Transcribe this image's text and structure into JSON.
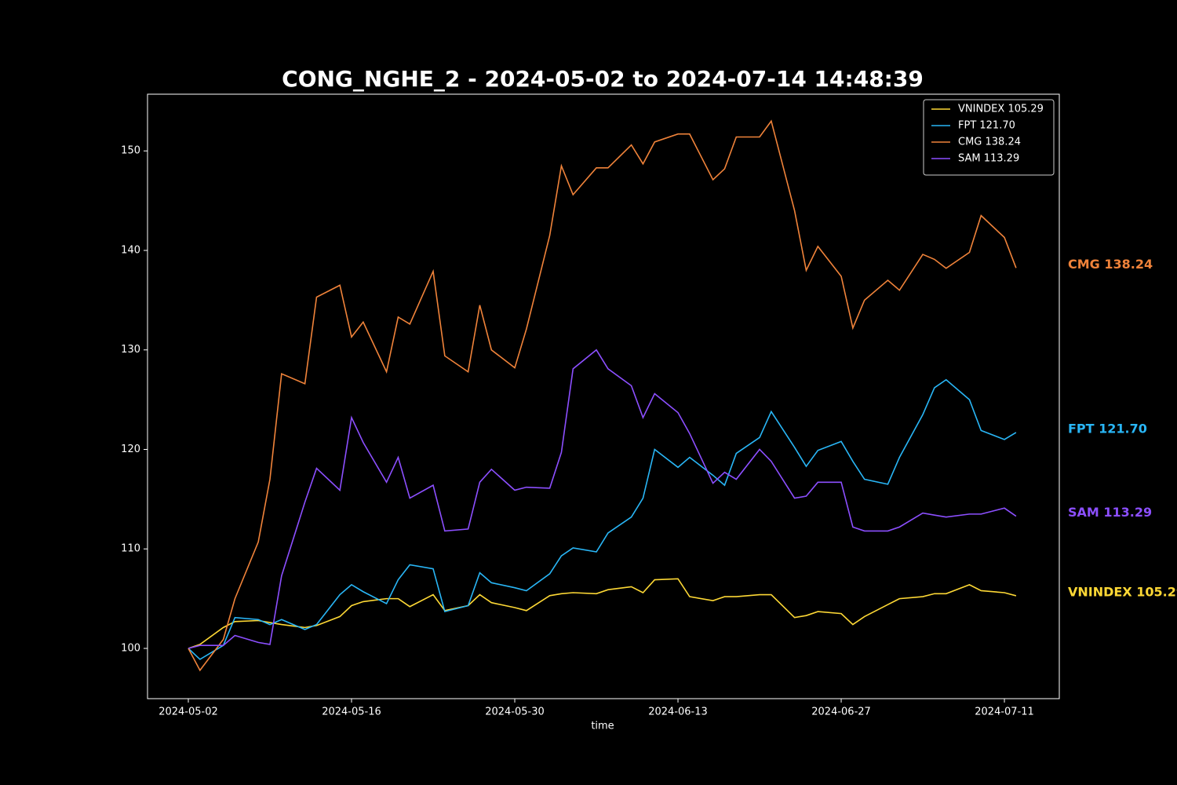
{
  "chart_data": {
    "type": "line",
    "title": "CONG_NGHE_2 - 2024-05-02 to 2024-07-14 14:48:39",
    "x_label": "time",
    "x": [
      "2024-05-02",
      "2024-05-03",
      "2024-05-05",
      "2024-05-06",
      "2024-05-08",
      "2024-05-09",
      "2024-05-10",
      "2024-05-12",
      "2024-05-13",
      "2024-05-15",
      "2024-05-16",
      "2024-05-17",
      "2024-05-19",
      "2024-05-20",
      "2024-05-21",
      "2024-05-23",
      "2024-05-24",
      "2024-05-26",
      "2024-05-27",
      "2024-05-28",
      "2024-05-30",
      "2024-05-31",
      "2024-06-02",
      "2024-06-03",
      "2024-06-04",
      "2024-06-06",
      "2024-06-07",
      "2024-06-09",
      "2024-06-10",
      "2024-06-11",
      "2024-06-13",
      "2024-06-14",
      "2024-06-16",
      "2024-06-17",
      "2024-06-18",
      "2024-06-20",
      "2024-06-21",
      "2024-06-23",
      "2024-06-24",
      "2024-06-25",
      "2024-06-27",
      "2024-06-28",
      "2024-06-29",
      "2024-07-01",
      "2024-07-02",
      "2024-07-04",
      "2024-07-05",
      "2024-07-06",
      "2024-07-08",
      "2024-07-09",
      "2024-07-11",
      "2024-07-12"
    ],
    "series": [
      {
        "name": "VNINDEX 105.29",
        "color": "#fdd835",
        "values": [
          100,
          100.4,
          102.1,
          102.7,
          102.8,
          102.6,
          102.4,
          102.1,
          102.3,
          103.2,
          104.3,
          104.7,
          105.0,
          105.0,
          104.2,
          105.4,
          103.8,
          104.3,
          105.4,
          104.6,
          104.1,
          103.8,
          105.3,
          105.5,
          105.6,
          105.5,
          105.9,
          106.2,
          105.6,
          106.9,
          107.0,
          105.2,
          104.8,
          105.2,
          105.2,
          105.4,
          105.4,
          103.1,
          103.3,
          103.7,
          103.5,
          102.4,
          103.2,
          104.4,
          105.0,
          105.2,
          105.5,
          105.5,
          106.4,
          105.8,
          105.6,
          105.29
        ]
      },
      {
        "name": "FPT 121.70",
        "color": "#29b6f6",
        "values": [
          100,
          98.9,
          100.3,
          103.1,
          102.9,
          102.4,
          102.9,
          101.9,
          102.4,
          105.4,
          106.4,
          105.7,
          104.5,
          106.9,
          108.4,
          108.0,
          103.7,
          104.3,
          107.6,
          106.6,
          106.1,
          105.8,
          107.5,
          109.3,
          110.1,
          109.7,
          111.6,
          113.2,
          115.1,
          120.0,
          118.2,
          119.2,
          117.4,
          116.4,
          119.6,
          121.2,
          123.8,
          120.2,
          118.3,
          119.9,
          120.8,
          118.8,
          117.0,
          116.5,
          119.2,
          123.5,
          126.2,
          127.0,
          125.0,
          121.9,
          121.0,
          121.7
        ]
      },
      {
        "name": "CMG 138.24",
        "color": "#f0833a",
        "values": [
          100,
          97.8,
          100.9,
          105.0,
          110.7,
          117.0,
          127.6,
          126.6,
          135.3,
          136.5,
          131.3,
          132.8,
          127.8,
          133.3,
          132.6,
          137.9,
          129.4,
          127.8,
          134.5,
          130.0,
          128.2,
          132.1,
          141.5,
          148.5,
          145.6,
          148.3,
          148.3,
          150.6,
          148.7,
          150.9,
          151.7,
          151.7,
          147.1,
          148.2,
          151.4,
          151.4,
          153.0,
          144.0,
          138.0,
          140.4,
          137.4,
          132.2,
          135.0,
          137.0,
          136.0,
          139.6,
          139.1,
          138.2,
          139.8,
          143.5,
          141.3,
          138.24
        ]
      },
      {
        "name": "SAM 113.29",
        "color": "#8c4fff",
        "values": [
          100,
          100.3,
          100.3,
          101.3,
          100.6,
          100.4,
          107.3,
          114.7,
          118.1,
          115.9,
          123.2,
          120.7,
          116.7,
          119.2,
          115.1,
          116.4,
          111.8,
          112.0,
          116.7,
          118.0,
          115.9,
          116.2,
          116.1,
          119.7,
          128.1,
          130.0,
          128.1,
          126.4,
          123.2,
          125.6,
          123.7,
          121.6,
          116.6,
          117.7,
          117.0,
          120.0,
          118.8,
          115.1,
          115.3,
          116.7,
          116.7,
          112.2,
          111.8,
          111.8,
          112.2,
          113.6,
          113.4,
          113.2,
          113.5,
          113.5,
          114.1,
          113.29
        ]
      }
    ],
    "xlim": [
      "2024-04-28T12:00",
      "2024-07-15T17:00"
    ],
    "xticks": [
      "2024-05-02",
      "2024-05-16",
      "2024-05-30",
      "2024-06-13",
      "2024-06-27",
      "2024-07-11"
    ],
    "ylim": [
      94.95,
      155.7
    ],
    "yticks": [
      100,
      110,
      120,
      130,
      140,
      150
    ],
    "legend": "upper right"
  }
}
